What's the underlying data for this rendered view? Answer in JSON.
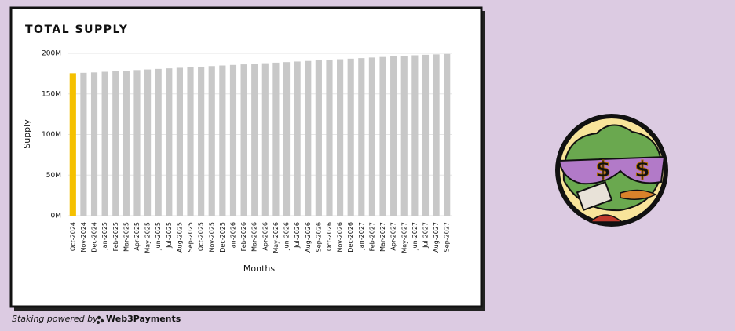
{
  "chart_data": {
    "type": "bar",
    "title": "TOTAL SUPPLY",
    "xlabel": "Months",
    "ylabel": "Supply",
    "categories": [
      "Oct-2024",
      "Nov-2024",
      "Dec-2024",
      "Jan-2025",
      "Feb-2025",
      "Mar-2025",
      "Apr-2025",
      "May-2025",
      "Jun-2025",
      "Jul-2025",
      "Aug-2025",
      "Sep-2025",
      "Oct-2025",
      "Nov-2025",
      "Dec-2025",
      "Jan-2026",
      "Feb-2026",
      "Mar-2026",
      "Apr-2026",
      "May-2026",
      "Jun-2026",
      "Jul-2026",
      "Aug-2026",
      "Sep-2026",
      "Oct-2026",
      "Nov-2026",
      "Dec-2026",
      "Jan-2027",
      "Feb-2027",
      "Mar-2027",
      "Apr-2027",
      "May-2027",
      "Jun-2027",
      "Jul-2027",
      "Aug-2027",
      "Sep-2027"
    ],
    "values": [
      175.5,
      176,
      176.5,
      177.3,
      178,
      178.7,
      179.4,
      180.1,
      180.8,
      181.5,
      182.2,
      182.9,
      183.6,
      184.3,
      185,
      185.7,
      186.4,
      187.1,
      187.8,
      188.5,
      189.2,
      189.9,
      190.6,
      191.3,
      192,
      192.7,
      193.4,
      194.1,
      194.8,
      195.5,
      196.2,
      196.9,
      197.6,
      198.2,
      198.7,
      199.2
    ],
    "colors": [
      "#f5c000",
      "#c8c8c8",
      "#c8c8c8",
      "#c8c8c8",
      "#c8c8c8",
      "#c8c8c8",
      "#c8c8c8",
      "#c8c8c8",
      "#c8c8c8",
      "#c8c8c8",
      "#c8c8c8",
      "#c8c8c8",
      "#c8c8c8",
      "#c8c8c8",
      "#c8c8c8",
      "#c8c8c8",
      "#c8c8c8",
      "#c8c8c8",
      "#c8c8c8",
      "#c8c8c8",
      "#c8c8c8",
      "#c8c8c8",
      "#c8c8c8",
      "#c8c8c8",
      "#c8c8c8",
      "#c8c8c8",
      "#c8c8c8",
      "#c8c8c8",
      "#c8c8c8",
      "#c8c8c8",
      "#c8c8c8",
      "#c8c8c8",
      "#c8c8c8",
      "#c8c8c8",
      "#c8c8c8",
      "#c8c8c8"
    ],
    "ylim": [
      0,
      200
    ],
    "yticks": [
      {
        "value": 0,
        "label": "0M"
      },
      {
        "value": 50,
        "label": "50M"
      },
      {
        "value": 100,
        "label": "100M"
      },
      {
        "value": 150,
        "label": "150M"
      },
      {
        "value": 200,
        "label": "200M"
      }
    ],
    "grid": true
  },
  "footer": {
    "text": "Staking powered by",
    "brand": "Web3Payments"
  }
}
